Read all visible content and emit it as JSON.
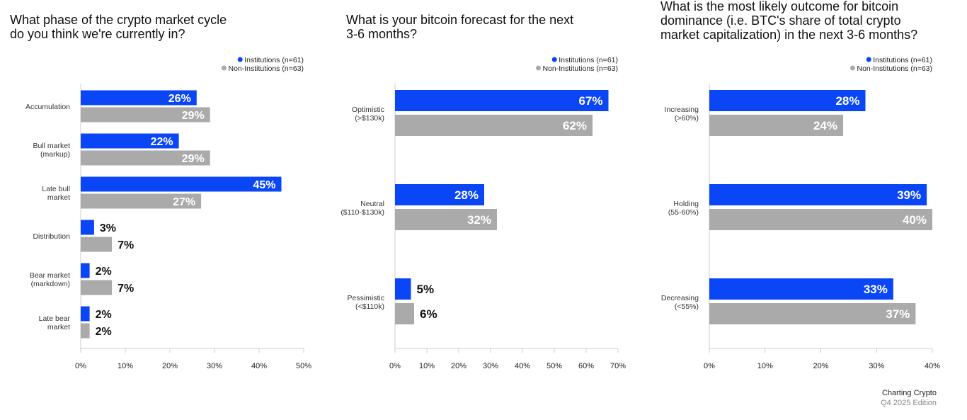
{
  "colors": {
    "institutions": "#0a46f5",
    "non_institutions": "#aaaaaa",
    "axis": "#cccccc"
  },
  "footer": {
    "brand": "Charting Crypto",
    "edition": "Q4 2025 Edition"
  },
  "chart_data": [
    {
      "type": "bar",
      "orientation": "horizontal",
      "title": "What phase of the crypto market cycle\ndo you think we're currently in?",
      "categories": [
        "Accumulation",
        "Bull market\n(markup)",
        "Late bull\nmarket",
        "Distribution",
        "Bear market\n(markdown)",
        "Late bear\nmarket"
      ],
      "series": [
        {
          "name": "Institutions (n=61)",
          "values": [
            26,
            22,
            45,
            3,
            2,
            2
          ]
        },
        {
          "name": "Non-Institutions (n=63)",
          "values": [
            29,
            29,
            27,
            7,
            7,
            2
          ]
        }
      ],
      "xlim": [
        0,
        50
      ],
      "xticks": [
        "0%",
        "10%",
        "20%",
        "30%",
        "40%",
        "50%"
      ],
      "legend": "top-right",
      "grid": false
    },
    {
      "type": "bar",
      "orientation": "horizontal",
      "title": "What is your bitcoin forecast for the next\n3-6 months?",
      "categories": [
        "Optimistic\n(>$130k)",
        "Neutral\n($110-$130k)",
        "Pessimistic\n(<$110k)"
      ],
      "series": [
        {
          "name": "Institutions (n=61)",
          "values": [
            67,
            28,
            5
          ]
        },
        {
          "name": "Non-Institutions (n=63)",
          "values": [
            62,
            32,
            6
          ]
        }
      ],
      "xlim": [
        0,
        70
      ],
      "xticks": [
        "0%",
        "10%",
        "20%",
        "30%",
        "40%",
        "50%",
        "60%",
        "70%"
      ],
      "legend": "top-right",
      "grid": false
    },
    {
      "type": "bar",
      "orientation": "horizontal",
      "title": "What is the most likely outcome for bitcoin\ndominance (i.e. BTC's share of total crypto\nmarket capitalization) in the next 3-6 months?",
      "categories": [
        "Increasing\n(>60%)",
        "Holding\n(55-60%)",
        "Decreasing\n(<55%)"
      ],
      "series": [
        {
          "name": "Institutions (n=61)",
          "values": [
            28,
            39,
            33
          ]
        },
        {
          "name": "Non-Institutions (n=63)",
          "values": [
            24,
            40,
            37
          ]
        }
      ],
      "xlim": [
        0,
        40
      ],
      "xticks": [
        "0%",
        "10%",
        "20%",
        "30%",
        "40%"
      ],
      "legend": "top-right",
      "grid": false
    }
  ]
}
